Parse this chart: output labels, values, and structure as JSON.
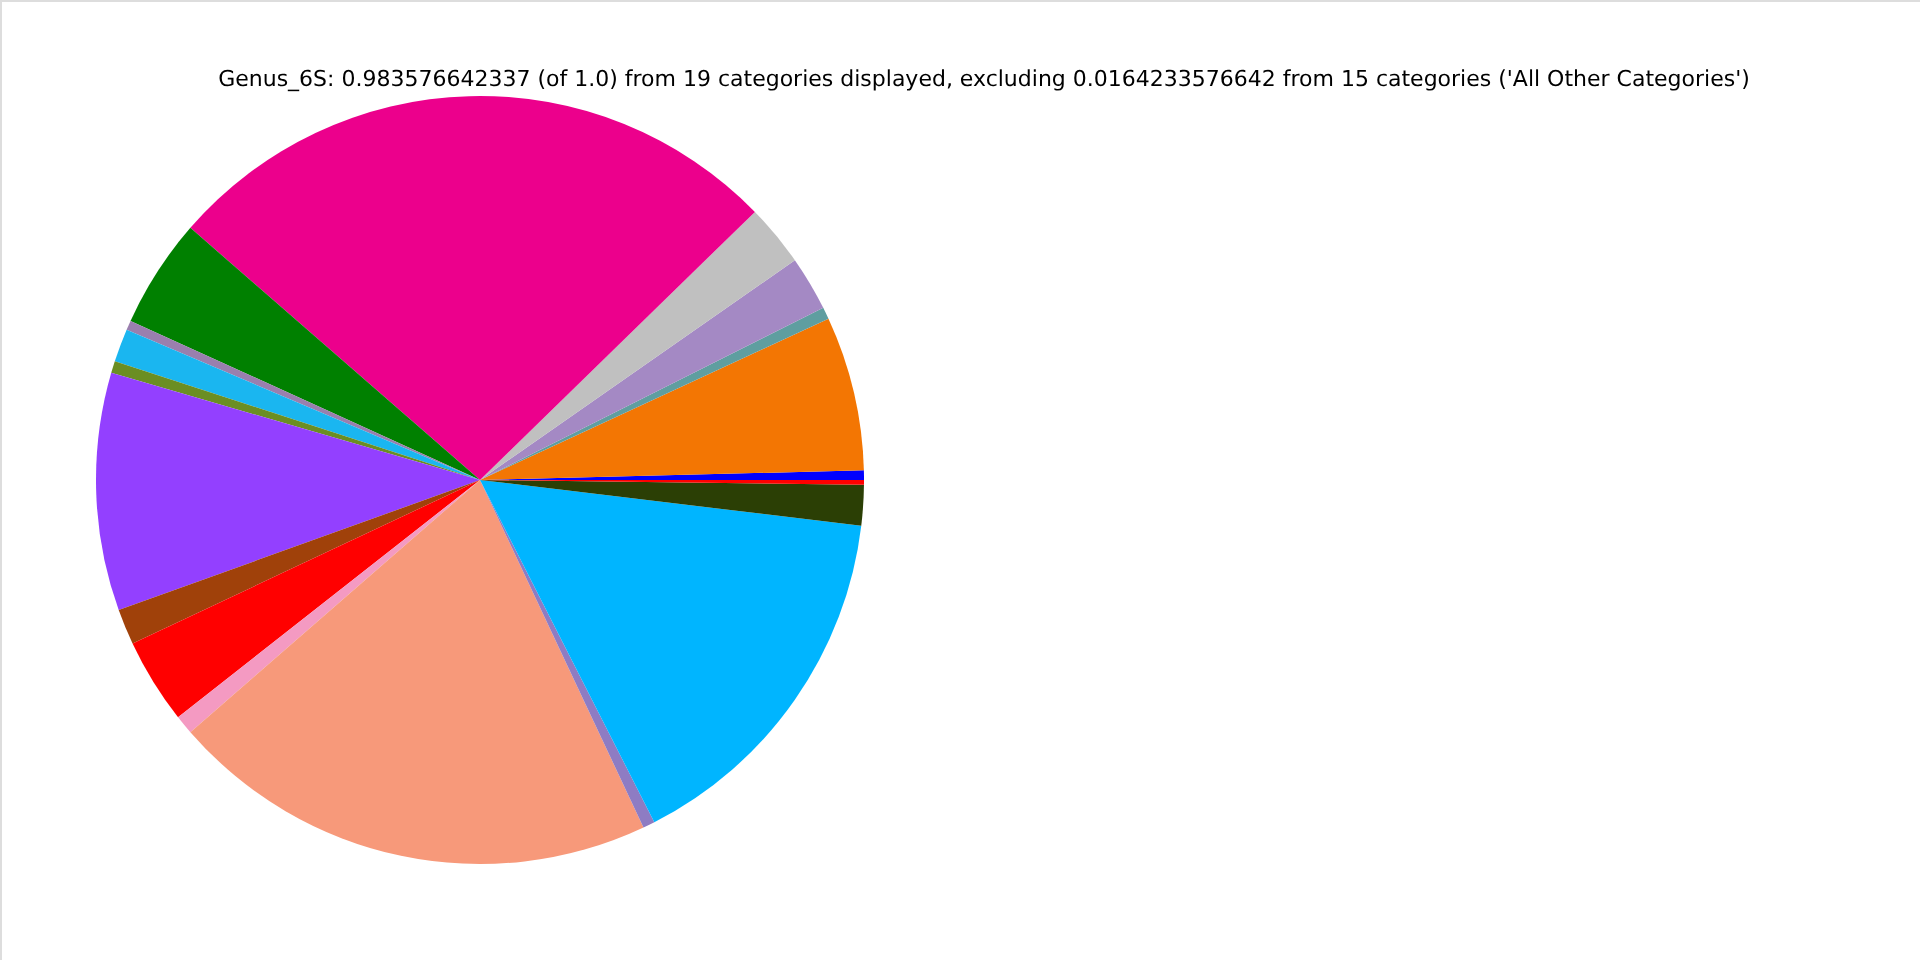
{
  "chart_data": {
    "type": "pie",
    "title": "Genus_6S: 0.983576642337 (of 1.0) from 19 categories displayed, excluding 0.0164233576642 from 15 categories ('All Other Categories')",
    "categories": [
      null,
      null,
      null,
      null,
      null,
      null,
      null,
      null,
      null,
      null,
      null,
      null,
      null,
      null,
      null,
      null,
      null,
      null,
      null
    ],
    "values": [
      0.4,
      6.5,
      0.5,
      2.3,
      2.6,
      26.3,
      4.6,
      0.4,
      1.4,
      0.5,
      10.0,
      1.5,
      3.6,
      0.8,
      20.6,
      0.5,
      15.6,
      1.7,
      0.2
    ],
    "colors": [
      "#0000ff",
      "#f37603",
      "#5f9ea0",
      "#a489c4",
      "#c0c0c0",
      "#ec008c",
      "#008000",
      "#9a7fae",
      "#1ab6f0",
      "#6b8e23",
      "#9340ff",
      "#a0410a",
      "#ff0000",
      "#f49ac2",
      "#f7997a",
      "#8e7cc3",
      "#00b5ff",
      "#2b3f05",
      "#ff0000"
    ]
  }
}
